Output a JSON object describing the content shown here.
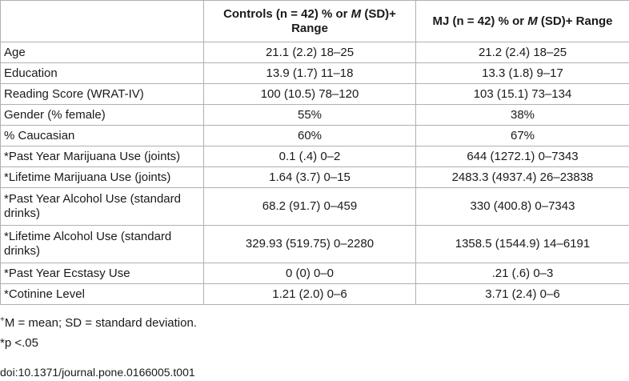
{
  "table": {
    "headers": [
      "",
      {
        "pre": "Controls (n = 42) % or ",
        "it": "M",
        "post": " (SD)+ Range"
      },
      {
        "pre": "MJ (n = 42) % or ",
        "it": "M",
        "post": " (SD)+ Range"
      }
    ],
    "rows": [
      {
        "label": "Age",
        "controls": "21.1 (2.2) 18–25",
        "mj": "21.2 (2.4) 18–25"
      },
      {
        "label": "Education",
        "controls": "13.9 (1.7) 11–18",
        "mj": "13.3 (1.8) 9–17"
      },
      {
        "label": "Reading Score (WRAT-IV)",
        "controls": "100 (10.5) 78–120",
        "mj": "103 (15.1) 73–134"
      },
      {
        "label": "Gender (% female)",
        "controls": "55%",
        "mj": "38%"
      },
      {
        "label": "% Caucasian",
        "controls": "60%",
        "mj": "67%"
      },
      {
        "label": "*Past Year Marijuana Use (joints)",
        "controls": "0.1 (.4) 0–2",
        "mj": "644 (1272.1) 0–7343"
      },
      {
        "label": "*Lifetime Marijuana Use (joints)",
        "controls": "1.64 (3.7) 0–15",
        "mj": "2483.3 (4937.4) 26–23838"
      },
      {
        "label": "*Past Year Alcohol Use (standard drinks)",
        "controls": "68.2 (91.7) 0–459",
        "mj": "330 (400.8) 0–7343"
      },
      {
        "label": "*Lifetime Alcohol Use (standard drinks)",
        "controls": "329.93 (519.75) 0–2280",
        "mj": "1358.5 (1544.9) 14–6191"
      },
      {
        "label": "*Past Year Ecstasy Use",
        "controls": "0 (0) 0–0",
        "mj": ".21 (.6) 0–3"
      },
      {
        "label": "*Cotinine Level",
        "controls": "1.21 (2.0) 0–6",
        "mj": "3.71 (2.4) 0–6"
      }
    ]
  },
  "footnotes": {
    "note1_mark": "+",
    "note1_text": "M = mean; SD = standard deviation.",
    "note2_text": "*p <.05"
  },
  "doi": "doi:10.1371/journal.pone.0166005.t001"
}
